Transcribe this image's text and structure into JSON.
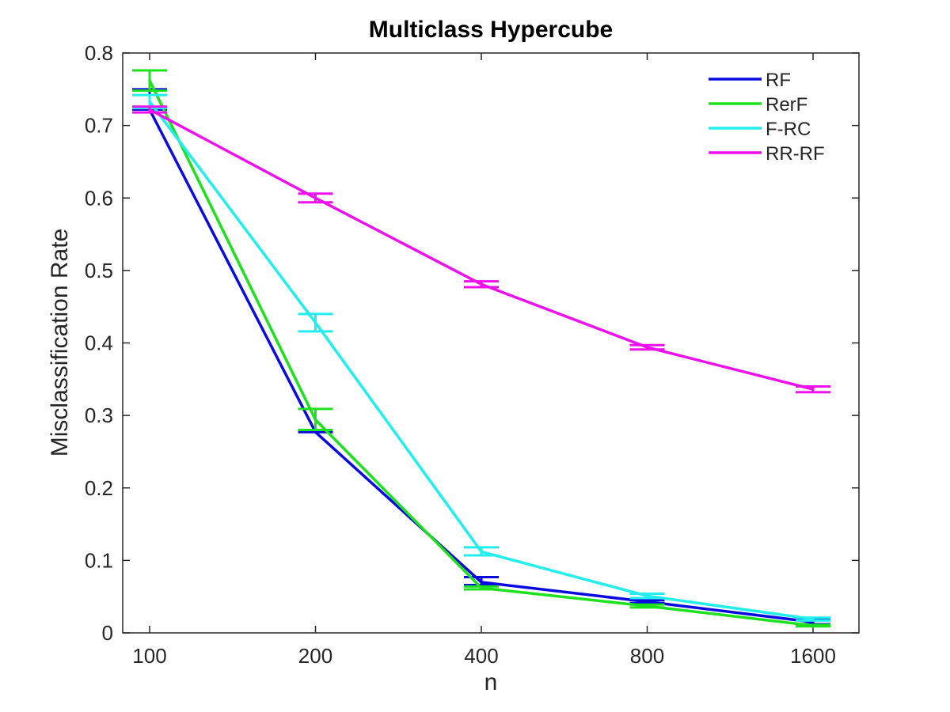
{
  "chart_data": {
    "type": "line",
    "title": "Multiclass Hypercube",
    "xlabel": "n",
    "ylabel": "Misclassification Rate",
    "x": [
      100,
      200,
      400,
      800,
      1600
    ],
    "x_scale": "log2",
    "xticks": [
      "100",
      "200",
      "400",
      "800",
      "1600"
    ],
    "ylim": [
      0,
      0.8
    ],
    "yticks": [
      "0",
      "0.1",
      "0.2",
      "0.3",
      "0.4",
      "0.5",
      "0.6",
      "0.7",
      "0.8"
    ],
    "grid": false,
    "legend_position": "top-right",
    "series": [
      {
        "name": "RF",
        "color": "#0a0ae0",
        "values": [
          0.722,
          0.277,
          0.07,
          0.043,
          0.015
        ],
        "err_lo": [
          0.722,
          0.277,
          0.066,
          0.041,
          0.012
        ],
        "err_hi": [
          0.75,
          0.279,
          0.077,
          0.045,
          0.018
        ]
      },
      {
        "name": "RerF",
        "color": "#1ee11e",
        "values": [
          0.762,
          0.294,
          0.062,
          0.037,
          0.01
        ],
        "err_lo": [
          0.748,
          0.28,
          0.06,
          0.035,
          0.009
        ],
        "err_hi": [
          0.776,
          0.309,
          0.064,
          0.039,
          0.011
        ]
      },
      {
        "name": "F-RC",
        "color": "#22eeee",
        "values": [
          0.733,
          0.428,
          0.112,
          0.051,
          0.019
        ],
        "err_lo": [
          0.724,
          0.416,
          0.107,
          0.048,
          0.017
        ],
        "err_hi": [
          0.742,
          0.44,
          0.118,
          0.054,
          0.021
        ]
      },
      {
        "name": "RR-RF",
        "color": "#ee11ee",
        "values": [
          0.722,
          0.6,
          0.481,
          0.394,
          0.336
        ],
        "err_lo": [
          0.718,
          0.594,
          0.477,
          0.391,
          0.332
        ],
        "err_hi": [
          0.726,
          0.606,
          0.485,
          0.397,
          0.34
        ]
      }
    ]
  }
}
